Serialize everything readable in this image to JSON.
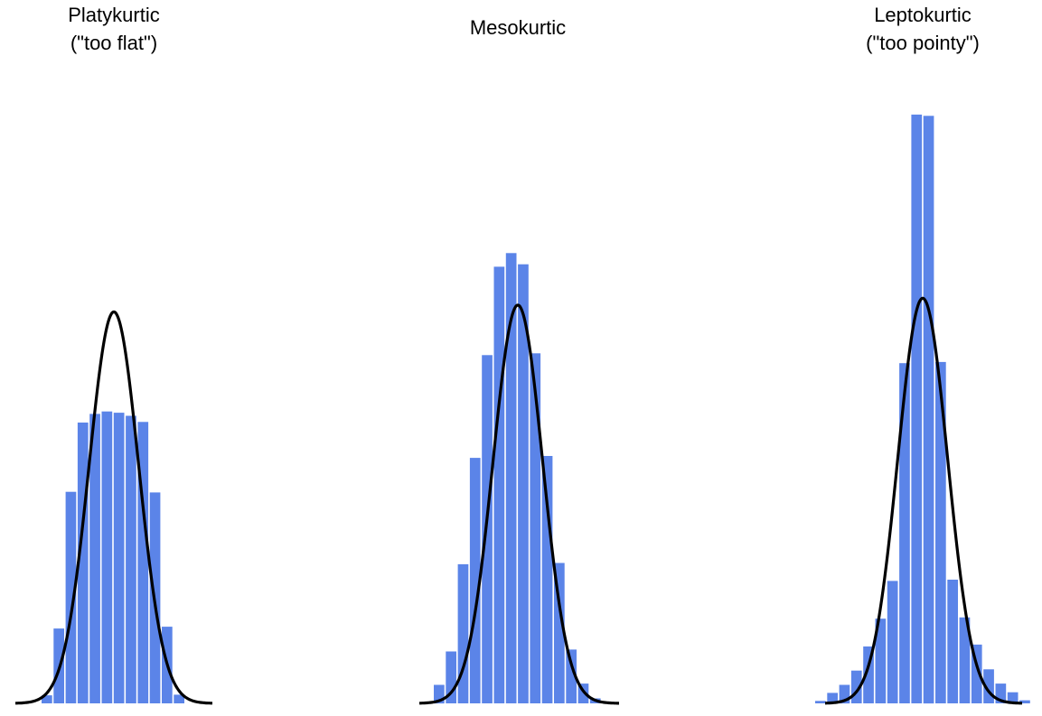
{
  "chart_data": [
    {
      "type": "bar",
      "title": [
        "Platykurtic",
        "(\"too flat\")"
      ],
      "bar_color": "#5B84E8",
      "curve_color": "#000000",
      "bins": 12,
      "values": [
        0.013,
        0.121,
        0.342,
        0.454,
        0.468,
        0.472,
        0.47,
        0.465,
        0.455,
        0.341,
        0.124,
        0.014
      ],
      "normal_curve_peak": 0.633
    },
    {
      "type": "bar",
      "title": [
        "Mesokurtic"
      ],
      "bar_color": "#5B84E8",
      "curve_color": "#000000",
      "bins": 14,
      "values": [
        0.03,
        0.084,
        0.225,
        0.397,
        0.563,
        0.706,
        0.728,
        0.71,
        0.566,
        0.4,
        0.227,
        0.087,
        0.032,
        0.008
      ],
      "normal_curve_peak": 0.644
    },
    {
      "type": "bar",
      "title": [
        "Leptokurtic",
        "(\"too pointy\")"
      ],
      "bar_color": "#5B84E8",
      "curve_color": "#000000",
      "bins": 18,
      "values": [
        0.004,
        0.017,
        0.03,
        0.053,
        0.092,
        0.137,
        0.198,
        0.55,
        0.952,
        0.95,
        0.552,
        0.2,
        0.139,
        0.095,
        0.055,
        0.032,
        0.018,
        0.005
      ],
      "normal_curve_peak": 0.655
    }
  ]
}
